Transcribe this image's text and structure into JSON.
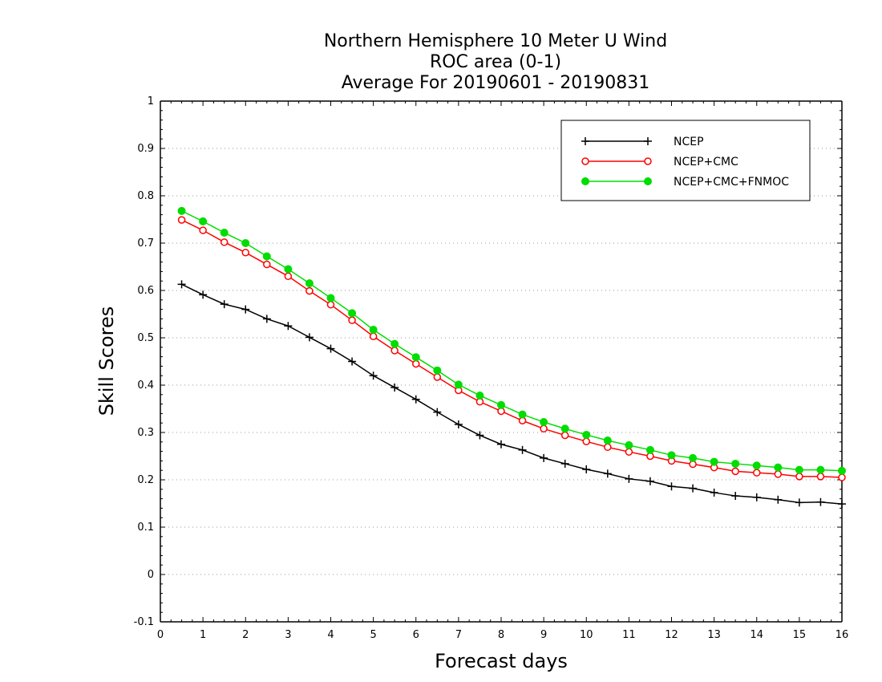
{
  "chart_data": {
    "type": "line",
    "title": "Northern Hemisphere 10 Meter U Wind",
    "subtitle_lines": [
      "ROC area (0-1)",
      "Average For 20190601 - 20190831"
    ],
    "xlabel": "Forecast days",
    "ylabel": "Skill Scores",
    "xlim": [
      0,
      16
    ],
    "ylim": [
      -0.1,
      1
    ],
    "xticks": [
      0,
      1,
      2,
      3,
      4,
      5,
      6,
      7,
      8,
      9,
      10,
      11,
      12,
      13,
      14,
      15,
      16
    ],
    "xtick_labels": [
      "0",
      "1",
      "2",
      "3",
      "4",
      "5",
      "6",
      "7",
      "8",
      "9",
      "10",
      "11",
      "12",
      "13",
      "14",
      "15",
      "16"
    ],
    "yticks": [
      -0.1,
      0,
      0.1,
      0.2,
      0.3,
      0.4,
      0.5,
      0.6,
      0.7,
      0.8,
      0.9,
      1
    ],
    "ytick_labels": [
      "-0.1",
      "0",
      "0.1",
      "0.2",
      "0.3",
      "0.4",
      "0.5",
      "0.6",
      "0.7",
      "0.8",
      "0.9",
      "1"
    ],
    "grid": "horizontal dotted",
    "legend_position": "top-right",
    "x": [
      0.5,
      1,
      1.5,
      2,
      2.5,
      3,
      3.5,
      4,
      4.5,
      5,
      5.5,
      6,
      6.5,
      7,
      7.5,
      8,
      8.5,
      9,
      9.5,
      10,
      10.5,
      11,
      11.5,
      12,
      12.5,
      13,
      13.5,
      14,
      14.5,
      15,
      15.5,
      16
    ],
    "series": [
      {
        "name": "NCEP",
        "color": "#000000",
        "marker": "plus",
        "values": [
          0.613,
          0.591,
          0.571,
          0.56,
          0.54,
          0.525,
          0.501,
          0.477,
          0.45,
          0.42,
          0.395,
          0.37,
          0.343,
          0.317,
          0.294,
          0.275,
          0.263,
          0.246,
          0.234,
          0.222,
          0.213,
          0.202,
          0.197,
          0.186,
          0.182,
          0.173,
          0.166,
          0.163,
          0.158,
          0.152,
          0.153,
          0.149
        ]
      },
      {
        "name": "NCEP+CMC",
        "color": "#ff0000",
        "marker": "open-circle",
        "values": [
          0.749,
          0.727,
          0.702,
          0.68,
          0.655,
          0.63,
          0.599,
          0.57,
          0.537,
          0.503,
          0.473,
          0.445,
          0.417,
          0.389,
          0.365,
          0.345,
          0.325,
          0.308,
          0.294,
          0.281,
          0.269,
          0.259,
          0.25,
          0.24,
          0.233,
          0.226,
          0.218,
          0.215,
          0.212,
          0.207,
          0.207,
          0.205
        ]
      },
      {
        "name": "NCEP+CMC+FNMOC",
        "color": "#00dd00",
        "marker": "filled-circle",
        "values": [
          0.768,
          0.746,
          0.722,
          0.7,
          0.672,
          0.645,
          0.615,
          0.584,
          0.552,
          0.517,
          0.487,
          0.459,
          0.431,
          0.401,
          0.378,
          0.358,
          0.338,
          0.322,
          0.308,
          0.295,
          0.283,
          0.273,
          0.263,
          0.252,
          0.246,
          0.238,
          0.234,
          0.23,
          0.226,
          0.221,
          0.221,
          0.219
        ]
      }
    ]
  }
}
